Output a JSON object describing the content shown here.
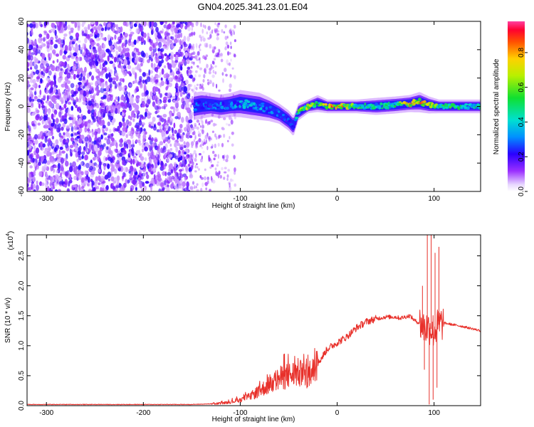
{
  "title": "GN04.2025.341.23.01.E04",
  "chart_data": [
    {
      "type": "heatmap",
      "name": "spectrogram",
      "xlabel": "Height of straight line (km)",
      "ylabel": "Frequency (Hz)",
      "xlim": [
        -320,
        148
      ],
      "ylim": [
        -60,
        60
      ],
      "xticks": [
        -300,
        -200,
        -100,
        0,
        100
      ],
      "yticks": [
        -60,
        -40,
        -20,
        0,
        20,
        40,
        60
      ],
      "noise_region_x": [
        -320,
        -150
      ],
      "sparse_region_x": [
        -150,
        -105
      ],
      "ridge": {
        "x": [
          -148,
          -140,
          -130,
          -120,
          -110,
          -100,
          -90,
          -80,
          -70,
          -60,
          -50,
          -45,
          -40,
          -30,
          -20,
          -10,
          0,
          20,
          40,
          60,
          75,
          85,
          95,
          105,
          120,
          148
        ],
        "freq": [
          0,
          1,
          1,
          0,
          1,
          2,
          1,
          0,
          -2,
          -5,
          -10,
          -14,
          -4,
          0,
          2,
          0,
          0,
          0,
          0,
          1,
          2,
          3,
          1,
          0,
          0,
          0
        ],
        "width": [
          8,
          8,
          7,
          7,
          7,
          8,
          8,
          8,
          7,
          6,
          6,
          6,
          5,
          4,
          5,
          4,
          4,
          4,
          5,
          5,
          5,
          6,
          5,
          4,
          4,
          4
        ],
        "amp": [
          0.3,
          0.35,
          0.3,
          0.35,
          0.35,
          0.4,
          0.4,
          0.4,
          0.35,
          0.35,
          0.3,
          0.25,
          0.6,
          0.8,
          0.6,
          0.9,
          0.95,
          0.6,
          0.5,
          0.55,
          0.9,
          0.9,
          0.85,
          0.6,
          0.55,
          0.5
        ]
      }
    },
    {
      "type": "line",
      "name": "snr",
      "xlabel": "Height of straight line (km)",
      "ylabel": "SNR (10 * v/v)",
      "multiplier": "(x10",
      "multiplier_exp": "4",
      "xlim": [
        -320,
        148
      ],
      "ylim": [
        0,
        2.85
      ],
      "xticks": [
        -300,
        -200,
        -100,
        0,
        100
      ],
      "yticks": [
        0.0,
        0.5,
        1.0,
        1.5,
        2.0,
        2.5
      ],
      "ytick_labels": [
        "0.0",
        "0.5",
        "1.0",
        "1.5",
        "2.0",
        "2.5"
      ],
      "series": [
        {
          "x": [
            -320,
            -250,
            -200,
            -150,
            -130,
            -120,
            -110,
            -100,
            -90,
            -80,
            -70,
            -60,
            -50,
            -40,
            -30,
            -20,
            -10,
            0,
            10,
            20,
            30,
            40,
            50,
            60,
            65,
            70,
            75,
            80,
            85,
            90,
            95,
            100,
            105,
            110,
            120,
            130,
            148
          ],
          "y": [
            0.02,
            0.02,
            0.02,
            0.02,
            0.03,
            0.04,
            0.06,
            0.1,
            0.15,
            0.25,
            0.35,
            0.45,
            0.5,
            0.55,
            0.45,
            0.7,
            0.95,
            1.05,
            1.15,
            1.3,
            1.4,
            1.45,
            1.48,
            1.48,
            1.46,
            1.48,
            1.5,
            1.42,
            1.38,
            1.3,
            1.3,
            1.25,
            1.35,
            1.38,
            1.35,
            1.32,
            1.25
          ],
          "spikes": [
            {
              "x": 93,
              "y": 2.9
            },
            {
              "x": 95,
              "y": 0.02
            },
            {
              "x": 97,
              "y": 2.85
            },
            {
              "x": 99,
              "y": 0.1
            },
            {
              "x": 101,
              "y": 2.55
            },
            {
              "x": 103,
              "y": 0.3
            },
            {
              "x": 105,
              "y": 2.65
            },
            {
              "x": 88,
              "y": 2.0
            },
            {
              "x": 90,
              "y": 0.6
            }
          ]
        }
      ]
    }
  ],
  "colorbar": {
    "label": "Normalized spectral amplitude",
    "range": [
      0,
      0.98
    ],
    "ticks": [
      0.0,
      0.2,
      0.4,
      0.6,
      0.8
    ],
    "tick_labels": [
      "0.0",
      "0.2",
      "0.4",
      "0.6",
      "0.8"
    ]
  },
  "colors": {
    "snr_line": "#e8302a",
    "noise": "#6a00ff",
    "frame": "#000000"
  }
}
